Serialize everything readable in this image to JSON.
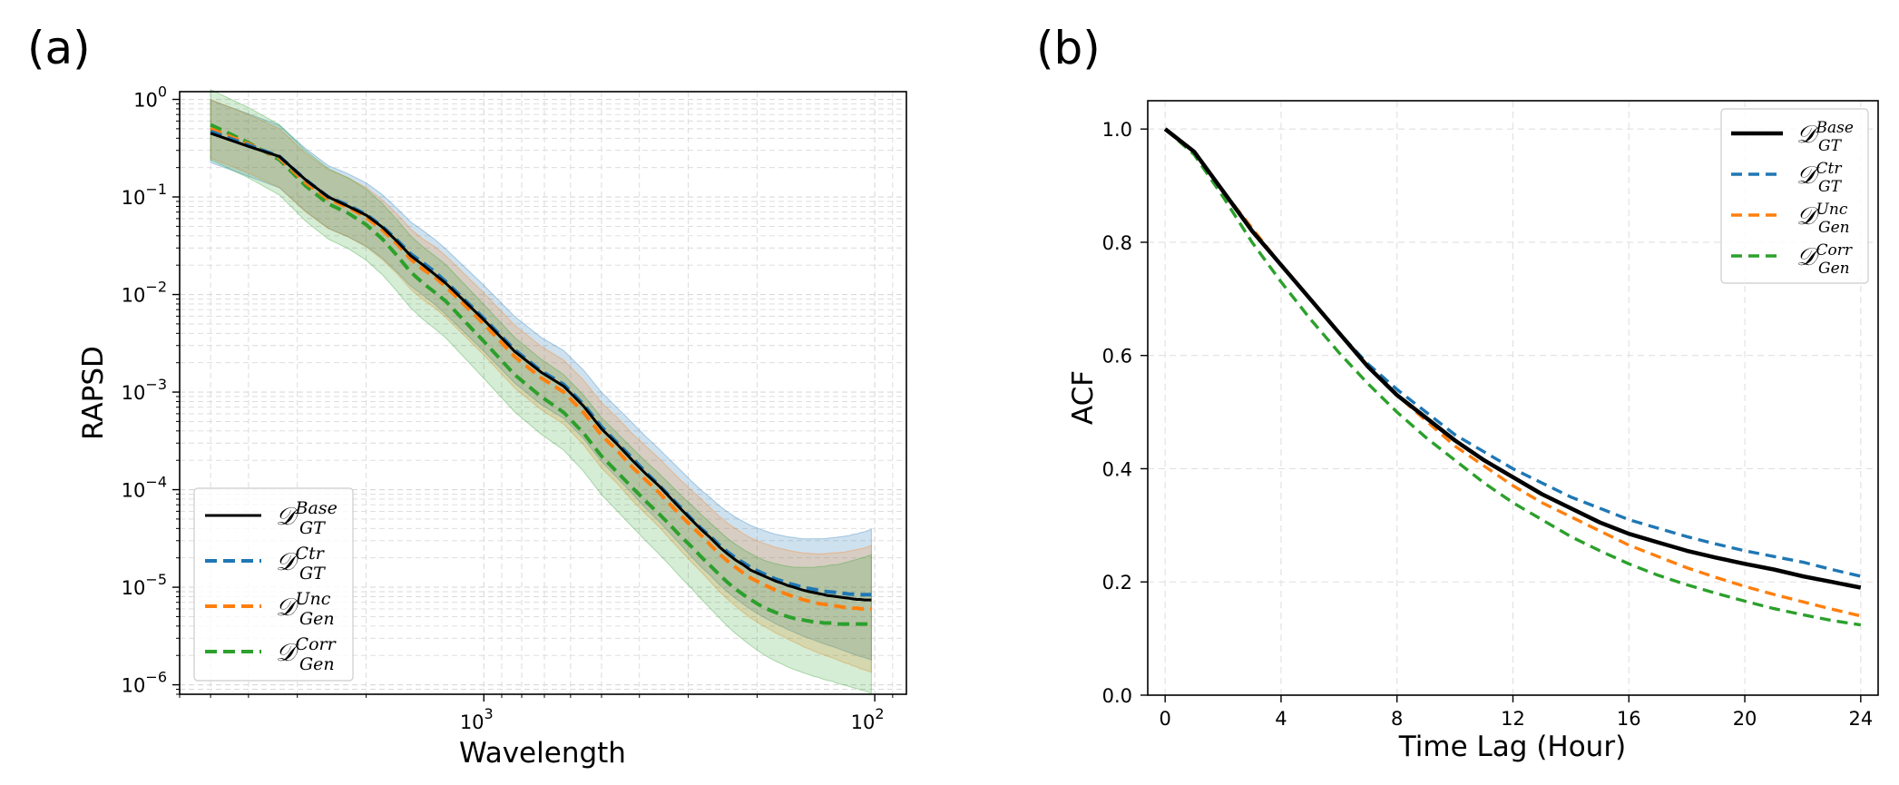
{
  "chart_data": [
    {
      "panel": "(a)",
      "type": "line",
      "xscale": "log",
      "yscale": "log",
      "x_inverted": true,
      "xlabel": "Wavelength",
      "ylabel": "RAPSD",
      "xlim": [
        6000,
        83
      ],
      "ylim": [
        8e-07,
        1.2
      ],
      "grid": true,
      "grid_minor": true,
      "legend": "lower-left",
      "xticks": [
        {
          "value": 1000,
          "base": "10",
          "exp": "3"
        },
        {
          "value": 100,
          "base": "10",
          "exp": "2"
        }
      ],
      "yticks": [
        {
          "value": 1,
          "base": "10",
          "exp": "0"
        },
        {
          "value": 0.1,
          "base": "10",
          "exp": "−1"
        },
        {
          "value": 0.01,
          "base": "10",
          "exp": "−2"
        },
        {
          "value": 0.001,
          "base": "10",
          "exp": "−3"
        },
        {
          "value": 0.0001,
          "base": "10",
          "exp": "−4"
        },
        {
          "value": 1e-05,
          "base": "10",
          "exp": "−5"
        },
        {
          "value": 1e-06,
          "base": "10",
          "exp": "−6"
        }
      ],
      "x": [
        5000,
        4000,
        3333,
        2857,
        2500,
        2222,
        2000,
        1818,
        1667,
        1538,
        1429,
        1333,
        1250,
        1000,
        833,
        714,
        625,
        556,
        500,
        455,
        417,
        385,
        357,
        333,
        313,
        294,
        278,
        263,
        250,
        238,
        227,
        217,
        208,
        200,
        192,
        185,
        179,
        172,
        167,
        161,
        156,
        152,
        147,
        143,
        139,
        135,
        132,
        128,
        125,
        122,
        119,
        116,
        114,
        111,
        109,
        106,
        104,
        102
      ],
      "series": [
        {
          "name": "Base",
          "label_main": "𝒟",
          "label_sup": "Base",
          "label_sub": "GT",
          "color": "#000000",
          "dash": "solid",
          "values": [
            0.45,
            0.33,
            0.26,
            0.15,
            0.1,
            0.08,
            0.065,
            0.049,
            0.035,
            0.025,
            0.02,
            0.016,
            0.013,
            0.0055,
            0.0026,
            0.0016,
            0.00115,
            0.00072,
            0.00042,
            0.00029,
            0.0002,
            0.000145,
            0.00011,
            8.2e-05,
            6.3e-05,
            4.9e-05,
            3.9e-05,
            3.2e-05,
            2.6e-05,
            2.2e-05,
            1.9e-05,
            1.7e-05,
            1.5e-05,
            1.4e-05,
            1.3e-05,
            1.22e-05,
            1.15e-05,
            1.09e-05,
            1.04e-05,
            1e-05,
            9.6e-06,
            9.3e-06,
            9e-06,
            8.8e-06,
            8.6e-06,
            8.4e-06,
            8.2e-06,
            8.1e-06,
            8e-06,
            7.9e-06,
            7.8e-06,
            7.7e-06,
            7.6e-06,
            7.5e-06,
            7.5e-06,
            7.4e-06,
            7.4e-06,
            7.4e-06
          ]
        },
        {
          "name": "Ctr",
          "label_main": "𝒟",
          "label_sup": "Ctr",
          "label_sub": "GT",
          "color": "#1f77b4",
          "dash": "dashed",
          "values": [
            0.47,
            0.34,
            0.26,
            0.15,
            0.1,
            0.082,
            0.066,
            0.05,
            0.036,
            0.026,
            0.021,
            0.017,
            0.0135,
            0.0057,
            0.0027,
            0.00165,
            0.0012,
            0.00075,
            0.00044,
            0.0003,
            0.00021,
            0.00015,
            0.000112,
            8.4e-05,
            6.5e-05,
            5e-05,
            4e-05,
            3.3e-05,
            2.7e-05,
            2.3e-05,
            2e-05,
            1.78e-05,
            1.6e-05,
            1.48e-05,
            1.37e-05,
            1.28e-05,
            1.21e-05,
            1.15e-05,
            1.1e-05,
            1.06e-05,
            1.02e-05,
            9.9e-06,
            9.7e-06,
            9.5e-06,
            9.3e-06,
            9.1e-06,
            9e-06,
            8.9e-06,
            8.8e-06,
            8.7e-06,
            8.6e-06,
            8.5e-06,
            8.5e-06,
            8.4e-06,
            8.4e-06,
            8.4e-06,
            8.4e-06,
            8.4e-06
          ]
        },
        {
          "name": "Unc",
          "label_main": "𝒟",
          "label_sup": "Unc",
          "label_sub": "Gen",
          "color": "#ff7f0e",
          "dash": "dashed",
          "values": [
            0.5,
            0.35,
            0.25,
            0.14,
            0.095,
            0.078,
            0.062,
            0.046,
            0.033,
            0.023,
            0.018,
            0.015,
            0.012,
            0.005,
            0.0023,
            0.0014,
            0.001,
            0.00062,
            0.00036,
            0.00025,
            0.00017,
            0.000125,
            9.4e-05,
            7e-05,
            5.4e-05,
            4.2e-05,
            3.4e-05,
            2.7e-05,
            2.2e-05,
            1.85e-05,
            1.6e-05,
            1.4e-05,
            1.25e-05,
            1.15e-05,
            1.06e-05,
            9.9e-06,
            9.3e-06,
            8.8e-06,
            8.4e-06,
            8e-06,
            7.7e-06,
            7.4e-06,
            7.2e-06,
            7e-06,
            6.8e-06,
            6.7e-06,
            6.6e-06,
            6.5e-06,
            6.4e-06,
            6.3e-06,
            6.2e-06,
            6.2e-06,
            6.1e-06,
            6.1e-06,
            6e-06,
            6e-06,
            6e-06,
            6e-06
          ]
        },
        {
          "name": "Corr",
          "label_main": "𝒟",
          "label_sup": "Corr",
          "label_sub": "Gen",
          "color": "#2ca02c",
          "dash": "dashed",
          "values": [
            0.55,
            0.36,
            0.24,
            0.13,
            0.085,
            0.068,
            0.052,
            0.037,
            0.025,
            0.017,
            0.013,
            0.0105,
            0.0085,
            0.0033,
            0.0015,
            0.0009,
            0.00062,
            0.00038,
            0.00022,
            0.00015,
            0.000105,
            7.6e-05,
            5.7e-05,
            4.3e-05,
            3.3e-05,
            2.6e-05,
            2.05e-05,
            1.65e-05,
            1.35e-05,
            1.12e-05,
            9.6e-06,
            8.4e-06,
            7.5e-06,
            6.8e-06,
            6.2e-06,
            5.8e-06,
            5.5e-06,
            5.2e-06,
            5e-06,
            4.8e-06,
            4.7e-06,
            4.6e-06,
            4.5e-06,
            4.4e-06,
            4.4e-06,
            4.3e-06,
            4.3e-06,
            4.3e-06,
            4.2e-06,
            4.2e-06,
            4.2e-06,
            4.2e-06,
            4.2e-06,
            4.2e-06,
            4.2e-06,
            4.2e-06,
            4.2e-06,
            4.2e-06
          ]
        }
      ]
    },
    {
      "panel": "(b)",
      "type": "line",
      "xlabel": "Time Lag (Hour)",
      "ylabel": "ACF",
      "xlim": [
        -0.6,
        24.6
      ],
      "ylim": [
        0.0,
        1.05
      ],
      "grid": true,
      "legend": "top-right",
      "xticks": [
        0,
        4,
        8,
        12,
        16,
        20,
        24
      ],
      "yticks": [
        "0.0",
        "0.2",
        "0.4",
        "0.6",
        "0.8",
        "1.0"
      ],
      "x": [
        0,
        1,
        2,
        3,
        4,
        5,
        6,
        7,
        8,
        9,
        10,
        11,
        12,
        13,
        14,
        15,
        16,
        17,
        18,
        19,
        20,
        21,
        22,
        23,
        24
      ],
      "series": [
        {
          "name": "Base",
          "label_main": "𝒟",
          "label_sup": "Base",
          "label_sub": "GT",
          "color": "#000000",
          "dash": "solid",
          "values": [
            1.0,
            0.96,
            0.89,
            0.82,
            0.76,
            0.7,
            0.64,
            0.58,
            0.53,
            0.49,
            0.45,
            0.415,
            0.385,
            0.355,
            0.33,
            0.305,
            0.285,
            0.27,
            0.255,
            0.243,
            0.232,
            0.222,
            0.21,
            0.2,
            0.19
          ]
        },
        {
          "name": "Ctr",
          "label_main": "𝒟",
          "label_sup": "Ctr",
          "label_sub": "GT",
          "color": "#1f77b4",
          "dash": "dashed",
          "values": [
            1.0,
            0.96,
            0.89,
            0.82,
            0.76,
            0.7,
            0.64,
            0.585,
            0.54,
            0.5,
            0.46,
            0.43,
            0.4,
            0.375,
            0.35,
            0.33,
            0.31,
            0.295,
            0.28,
            0.267,
            0.255,
            0.245,
            0.235,
            0.222,
            0.21
          ]
        },
        {
          "name": "Unc",
          "label_main": "𝒟",
          "label_sup": "Unc",
          "label_sub": "Gen",
          "color": "#ff7f0e",
          "dash": "dashed",
          "values": [
            1.0,
            0.96,
            0.89,
            0.825,
            0.76,
            0.7,
            0.64,
            0.58,
            0.53,
            0.485,
            0.44,
            0.405,
            0.37,
            0.34,
            0.315,
            0.29,
            0.265,
            0.245,
            0.225,
            0.208,
            0.192,
            0.178,
            0.165,
            0.152,
            0.14
          ]
        },
        {
          "name": "Corr",
          "label_main": "𝒟",
          "label_sup": "Corr",
          "label_sub": "Gen",
          "color": "#2ca02c",
          "dash": "dashed",
          "values": [
            1.0,
            0.955,
            0.88,
            0.8,
            0.73,
            0.665,
            0.605,
            0.55,
            0.5,
            0.455,
            0.415,
            0.375,
            0.34,
            0.31,
            0.28,
            0.255,
            0.232,
            0.212,
            0.195,
            0.18,
            0.166,
            0.153,
            0.142,
            0.132,
            0.124
          ]
        }
      ]
    }
  ]
}
